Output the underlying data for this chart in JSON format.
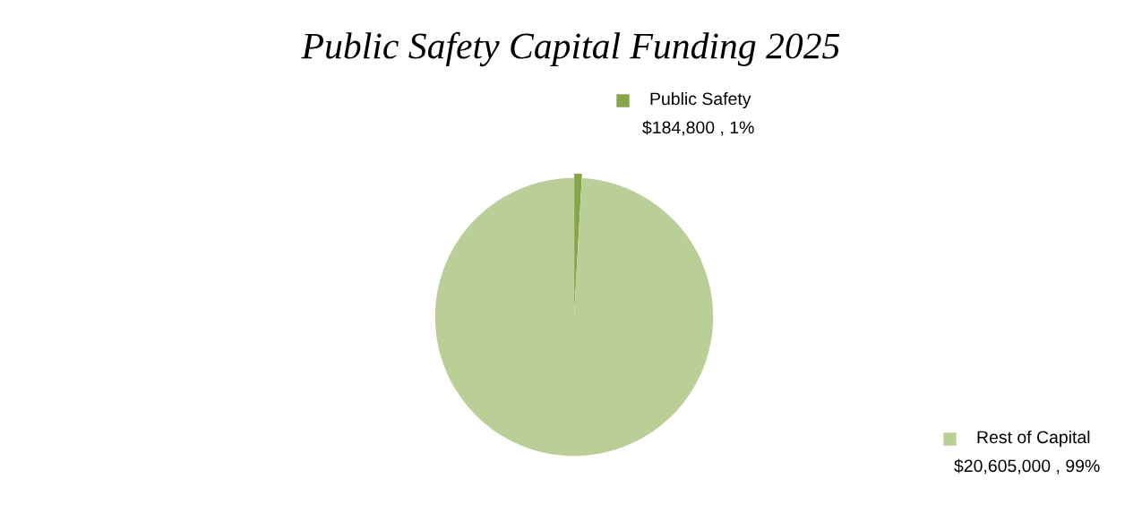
{
  "chart_data": {
    "type": "pie",
    "title": "Public Safety Capital Funding 2025",
    "categories": [
      "Public Safety",
      "Rest of Capital"
    ],
    "values": [
      184800,
      20605000
    ],
    "colors": [
      "#86a44a",
      "#bacf98"
    ],
    "value_labels": [
      "$184,800 , 1%",
      "$20,605,000 , 99%"
    ],
    "legend": "right"
  }
}
